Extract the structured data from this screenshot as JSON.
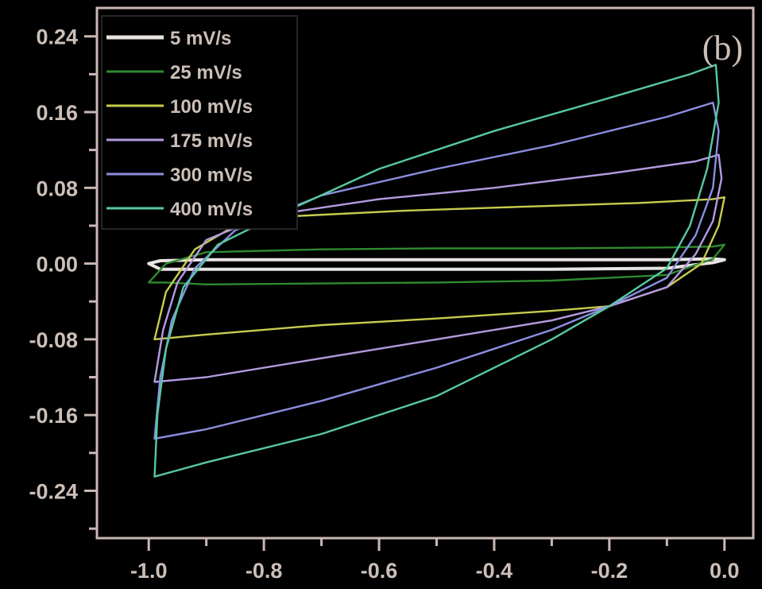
{
  "chart_data": {
    "type": "line",
    "title": "",
    "xlabel": "",
    "ylabel": "",
    "panel_label": "(b)",
    "xlim": [
      -1.09,
      0.05
    ],
    "ylim": [
      -0.29,
      0.27
    ],
    "x_ticks": [
      "-1.0",
      "-0.8",
      "-0.6",
      "-0.4",
      "-0.2",
      "0.0"
    ],
    "x_tick_values": [
      -1.0,
      -0.8,
      -0.6,
      -0.4,
      -0.2,
      0.0
    ],
    "y_ticks": [
      "0.24",
      "0.16",
      "0.08",
      "0.00",
      "-0.08",
      "-0.16",
      "-0.24"
    ],
    "y_tick_values": [
      0.24,
      0.16,
      0.08,
      0.0,
      -0.08,
      -0.16,
      -0.24
    ],
    "grid": false,
    "legend": {
      "position": "top-left"
    },
    "axis_color": "#c9b8b3",
    "series": [
      {
        "name": "5 mV/s",
        "color": "#e8e4e1",
        "x": [
          -1.0,
          -0.98,
          -0.9,
          -0.7,
          -0.5,
          -0.3,
          -0.1,
          -0.02,
          0.0,
          -0.02,
          -0.1,
          -0.3,
          -0.5,
          -0.7,
          -0.9,
          -0.98,
          -1.0
        ],
        "y": [
          0.0,
          0.003,
          0.004,
          0.004,
          0.004,
          0.004,
          0.004,
          0.005,
          0.004,
          0.001,
          -0.005,
          -0.006,
          -0.006,
          -0.006,
          -0.006,
          -0.006,
          0.0
        ]
      },
      {
        "name": "25 mV/s",
        "color": "#2f8a2f",
        "x": [
          -1.0,
          -0.97,
          -0.9,
          -0.7,
          -0.5,
          -0.3,
          -0.1,
          -0.02,
          0.0,
          -0.02,
          -0.1,
          -0.3,
          -0.5,
          -0.7,
          -0.9,
          -0.97,
          -1.0
        ],
        "y": [
          -0.02,
          0.0,
          0.012,
          0.015,
          0.016,
          0.016,
          0.017,
          0.018,
          0.02,
          0.005,
          -0.012,
          -0.018,
          -0.02,
          -0.021,
          -0.022,
          -0.02,
          -0.02
        ]
      },
      {
        "name": "100 mV/s",
        "color": "#c8cc4e",
        "x": [
          -0.99,
          -0.97,
          -0.92,
          -0.85,
          -0.75,
          -0.55,
          -0.35,
          -0.15,
          -0.02,
          0.0,
          -0.01,
          -0.04,
          -0.1,
          -0.2,
          -0.3,
          -0.5,
          -0.7,
          -0.9,
          -0.99
        ],
        "y": [
          -0.08,
          -0.03,
          0.015,
          0.04,
          0.05,
          0.056,
          0.06,
          0.064,
          0.068,
          0.07,
          0.04,
          0.0,
          -0.025,
          -0.045,
          -0.05,
          -0.058,
          -0.065,
          -0.075,
          -0.08
        ]
      },
      {
        "name": "175 mV/s",
        "color": "#b59ae0",
        "x": [
          -0.99,
          -0.975,
          -0.95,
          -0.9,
          -0.8,
          -0.6,
          -0.4,
          -0.2,
          -0.05,
          -0.01,
          -0.005,
          -0.02,
          -0.05,
          -0.1,
          -0.2,
          -0.3,
          -0.5,
          -0.7,
          -0.9,
          -0.99
        ],
        "y": [
          -0.125,
          -0.07,
          -0.02,
          0.025,
          0.05,
          0.068,
          0.08,
          0.095,
          0.108,
          0.115,
          0.09,
          0.045,
          0.01,
          -0.025,
          -0.045,
          -0.06,
          -0.08,
          -0.1,
          -0.12,
          -0.125
        ]
      },
      {
        "name": "300 mV/s",
        "color": "#8b8fe0",
        "x": [
          -0.99,
          -0.98,
          -0.96,
          -0.92,
          -0.85,
          -0.7,
          -0.5,
          -0.3,
          -0.1,
          -0.02,
          -0.01,
          -0.02,
          -0.05,
          -0.1,
          -0.2,
          -0.3,
          -0.5,
          -0.7,
          -0.9,
          -0.99
        ],
        "y": [
          -0.185,
          -0.12,
          -0.06,
          -0.005,
          0.035,
          0.072,
          0.1,
          0.125,
          0.155,
          0.17,
          0.14,
          0.08,
          0.03,
          -0.015,
          -0.045,
          -0.07,
          -0.11,
          -0.145,
          -0.175,
          -0.185
        ]
      },
      {
        "name": "400 mV/s",
        "color": "#57c9a3",
        "x": [
          -0.99,
          -0.985,
          -0.97,
          -0.94,
          -0.88,
          -0.78,
          -0.6,
          -0.4,
          -0.2,
          -0.06,
          -0.015,
          -0.01,
          -0.03,
          -0.06,
          -0.1,
          -0.2,
          -0.3,
          -0.5,
          -0.7,
          -0.9,
          -0.99
        ],
        "y": [
          -0.225,
          -0.16,
          -0.09,
          -0.025,
          0.02,
          0.05,
          0.1,
          0.14,
          0.175,
          0.2,
          0.21,
          0.17,
          0.1,
          0.04,
          -0.005,
          -0.045,
          -0.08,
          -0.14,
          -0.18,
          -0.21,
          -0.225
        ]
      }
    ]
  }
}
